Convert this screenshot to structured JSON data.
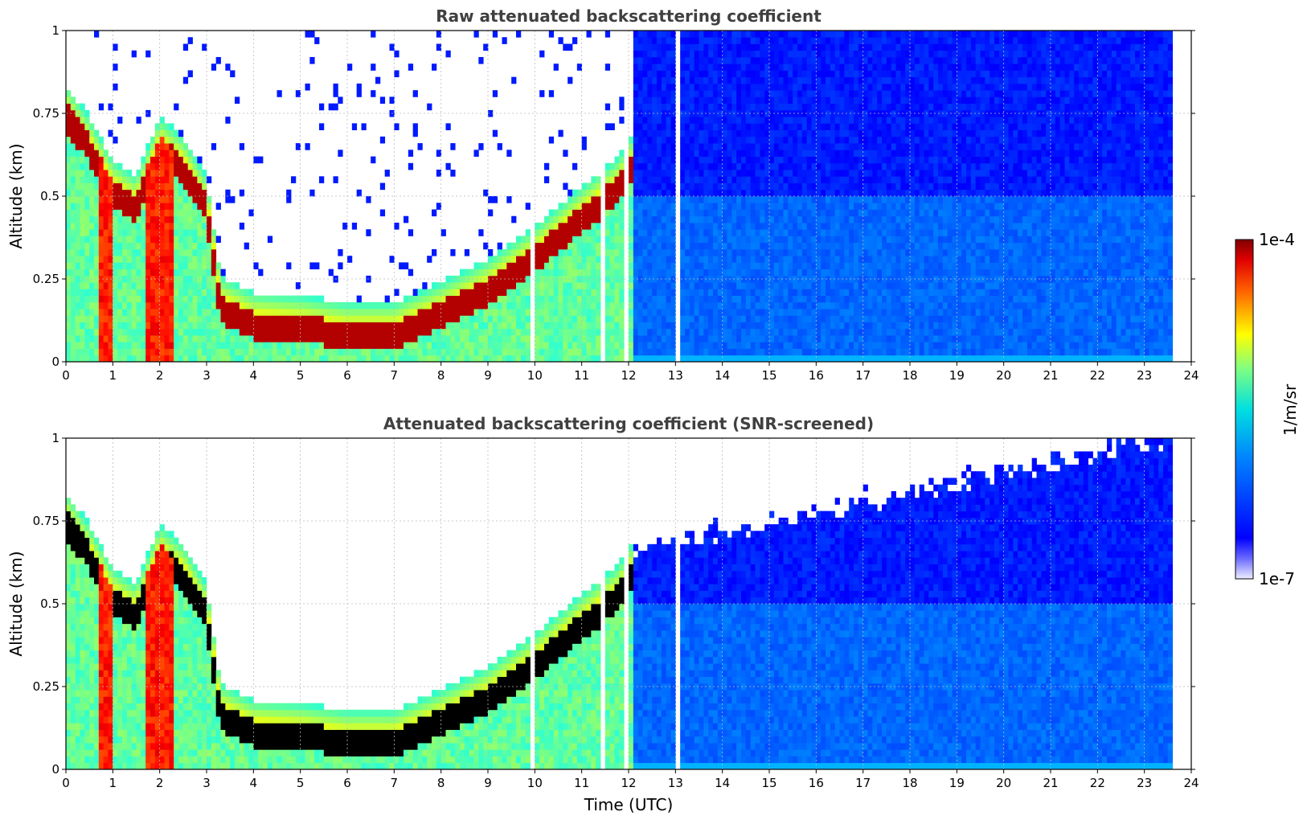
{
  "chart_data": [
    {
      "type": "heatmap",
      "title": "Raw attenuated backscattering coefficient",
      "xlabel": "",
      "ylabel": "Altitude (km)",
      "xlim": [
        0,
        24
      ],
      "ylim": [
        0,
        1
      ],
      "x_ticks": [
        "0",
        "1",
        "2",
        "3",
        "4",
        "5",
        "6",
        "7",
        "8",
        "9",
        "10",
        "11",
        "12",
        "13",
        "14",
        "15",
        "16",
        "17",
        "18",
        "19",
        "20",
        "21",
        "22",
        "23",
        "24"
      ],
      "y_ticks": [
        "0",
        "0.25",
        "0.5",
        "0.75",
        "1"
      ],
      "grid": true,
      "variant": "raw",
      "layer_top_km": [
        {
          "t": 0.0,
          "h": 0.78
        },
        {
          "t": 0.5,
          "h": 0.68
        },
        {
          "t": 1.0,
          "h": 0.55
        },
        {
          "t": 1.5,
          "h": 0.5
        },
        {
          "t": 2.0,
          "h": 0.68
        },
        {
          "t": 2.5,
          "h": 0.62
        },
        {
          "t": 3.0,
          "h": 0.5
        },
        {
          "t": 3.3,
          "h": 0.2
        },
        {
          "t": 4.0,
          "h": 0.15
        },
        {
          "t": 5.0,
          "h": 0.14
        },
        {
          "t": 6.0,
          "h": 0.12
        },
        {
          "t": 7.0,
          "h": 0.12
        },
        {
          "t": 8.0,
          "h": 0.18
        },
        {
          "t": 9.0,
          "h": 0.25
        },
        {
          "t": 10.0,
          "h": 0.35
        },
        {
          "t": 11.0,
          "h": 0.47
        },
        {
          "t": 11.8,
          "h": 0.56
        },
        {
          "t": 12.0,
          "h": 0.62
        }
      ]
    },
    {
      "type": "heatmap",
      "title": "Attenuated backscattering coefficient (SNR-screened)",
      "xlabel": "Time (UTC)",
      "ylabel": "Altitude (km)",
      "xlim": [
        0,
        24
      ],
      "ylim": [
        0,
        1
      ],
      "x_ticks": [
        "0",
        "1",
        "2",
        "3",
        "4",
        "5",
        "6",
        "7",
        "8",
        "9",
        "10",
        "11",
        "12",
        "13",
        "14",
        "15",
        "16",
        "17",
        "18",
        "19",
        "20",
        "21",
        "22",
        "23",
        "24"
      ],
      "y_ticks": [
        "0",
        "0.25",
        "0.5",
        "0.75",
        "1"
      ],
      "grid": true,
      "variant": "screened",
      "layer_top_km": [
        {
          "t": 0.0,
          "h": 0.78
        },
        {
          "t": 0.5,
          "h": 0.68
        },
        {
          "t": 1.0,
          "h": 0.55
        },
        {
          "t": 1.5,
          "h": 0.5
        },
        {
          "t": 2.0,
          "h": 0.68
        },
        {
          "t": 2.5,
          "h": 0.62
        },
        {
          "t": 3.0,
          "h": 0.5
        },
        {
          "t": 3.3,
          "h": 0.2
        },
        {
          "t": 4.0,
          "h": 0.15
        },
        {
          "t": 5.0,
          "h": 0.14
        },
        {
          "t": 6.0,
          "h": 0.12
        },
        {
          "t": 7.0,
          "h": 0.12
        },
        {
          "t": 8.0,
          "h": 0.18
        },
        {
          "t": 9.0,
          "h": 0.25
        },
        {
          "t": 10.0,
          "h": 0.35
        },
        {
          "t": 11.0,
          "h": 0.47
        },
        {
          "t": 11.8,
          "h": 0.56
        },
        {
          "t": 12.0,
          "h": 0.62
        }
      ]
    }
  ],
  "colorbar": {
    "label": "1/m/sr",
    "max_label": "1e-4",
    "min_label": "1e-7",
    "colormap": "jet",
    "range": [
      1e-07,
      0.0001
    ]
  },
  "colors": {
    "saturated_screened": "#000000",
    "background": "#ffffff",
    "grid": "#bbbbbb"
  }
}
